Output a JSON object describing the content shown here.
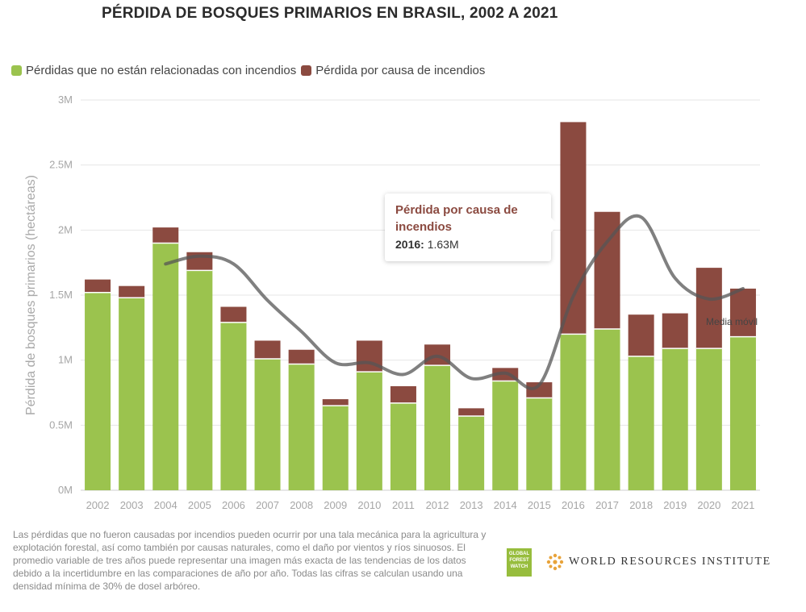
{
  "title": "PÉRDIDA DE BOSQUES PRIMARIOS EN BRASIL, 2002 A 2021",
  "legend": [
    {
      "label": "Pérdidas que no están relacionadas con incendios",
      "color": "#9bc34e"
    },
    {
      "label": "Pérdida por causa de incendios",
      "color": "#8b4a40"
    }
  ],
  "tooltip": {
    "title": "Pérdida por causa de incendios",
    "year_label": "2016:",
    "value_label": "1.63M"
  },
  "chart_data": {
    "type": "bar",
    "stacked": true,
    "categories": [
      "2002",
      "2003",
      "2004",
      "2005",
      "2006",
      "2007",
      "2008",
      "2009",
      "2010",
      "2011",
      "2012",
      "2013",
      "2014",
      "2015",
      "2016",
      "2017",
      "2018",
      "2019",
      "2020",
      "2021"
    ],
    "series": [
      {
        "name": "Pérdidas que no están relacionadas con incendios",
        "color": "#9bc34e",
        "values": [
          1.52,
          1.48,
          1.9,
          1.69,
          1.29,
          1.01,
          0.97,
          0.65,
          0.91,
          0.67,
          0.96,
          0.57,
          0.84,
          0.71,
          1.2,
          1.24,
          1.03,
          1.09,
          1.09,
          1.18
        ]
      },
      {
        "name": "Pérdida por causa de incendios",
        "color": "#8b4a40",
        "values": [
          0.1,
          0.09,
          0.12,
          0.14,
          0.12,
          0.14,
          0.11,
          0.05,
          0.24,
          0.13,
          0.16,
          0.06,
          0.1,
          0.12,
          1.63,
          0.9,
          0.32,
          0.27,
          0.62,
          0.37
        ]
      }
    ],
    "moving_average": {
      "label": "Media móvil",
      "color": "#555555",
      "x": [
        "2004",
        "2005",
        "2006",
        "2007",
        "2008",
        "2009",
        "2010",
        "2011",
        "2012",
        "2013",
        "2014",
        "2015",
        "2016",
        "2017",
        "2018",
        "2019",
        "2020",
        "2021"
      ],
      "values": [
        1.74,
        1.8,
        1.74,
        1.46,
        1.22,
        0.98,
        0.98,
        0.89,
        1.03,
        0.86,
        0.9,
        0.81,
        1.49,
        1.91,
        2.1,
        1.63,
        1.47,
        1.55
      ]
    },
    "ylabel": "Pérdida de bosques primarios (hectáreas)",
    "xlabel": "",
    "ylim": [
      0,
      3
    ],
    "yticks": [
      0,
      0.5,
      1,
      1.5,
      2,
      2.5,
      3
    ],
    "ytick_labels": [
      "0M",
      "0.5M",
      "1M",
      "1.5M",
      "2M",
      "2.5M",
      "3M"
    ],
    "grid": true
  },
  "footnote": "Las pérdidas que no fueron causadas por incendios pueden ocurrir por una tala mecánica para la agricultura y explotación forestal, así como también por causas naturales, como el daño por vientos y ríos sinuosos. El promedio variable de tres años puede representar una imagen más exacta de las tendencias de los datos debido a la incertidumbre en las comparaciones de año por año. Todas las cifras se calculan usando una densidad mínima de 30% de dosel arbóreo.",
  "logos": {
    "gfw": "GLOBAL FOREST WATCH",
    "wri": "WORLD RESOURCES INSTITUTE"
  }
}
